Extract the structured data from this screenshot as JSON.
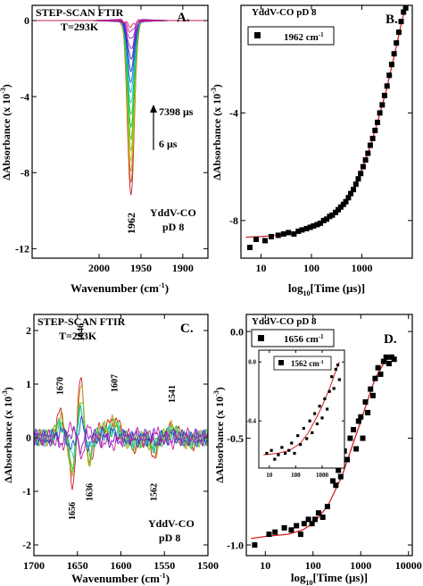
{
  "chart_data": [
    {
      "id": "A",
      "type": "line",
      "panel_letter": "A.",
      "title": [
        "STEP-SCAN FTIR",
        "T=293K"
      ],
      "xlabel": "Wavenumber (cm",
      "xlabel_sup": "-1",
      "xlabel_tail": ")",
      "ylabel": "ΔAbsorbance (x 10",
      "ylabel_sup": "-3",
      "ylabel_tail": ")",
      "xlim": [
        2080,
        1870
      ],
      "ylim": [
        -12.5,
        0.8
      ],
      "xticks": [
        2000,
        1950,
        1900
      ],
      "xtick_labels": [
        "2000",
        "1950",
        "1900"
      ],
      "yticks": [
        0,
        -4,
        -8,
        -12
      ],
      "ytick_labels": [
        "0",
        "-4",
        "-8",
        "-12"
      ],
      "peak_center": 1962,
      "peak_width": 4,
      "trace_min_depths": [
        -9.2,
        -8.6,
        -8.0,
        -7.4,
        -6.8,
        -6.2,
        -5.6,
        -5.0,
        -4.4,
        -3.8,
        -3.2,
        -2.6,
        -2.0,
        -1.5,
        -1.0,
        -0.6,
        -0.3
      ],
      "annotations": {
        "time_max": "7398 μs",
        "time_min": "6 μs",
        "peak_label": "1962",
        "sample": "YddV-CO",
        "condition": "pD 8"
      }
    },
    {
      "id": "B",
      "type": "scatter",
      "panel_letter": "B.",
      "title": "YddV-CO pD 8",
      "xlabel_prefix": "log",
      "xlabel_sub": "10",
      "xlabel_rest": "[Time (μs)]",
      "ylabel": "ΔAbsorbance (x 10",
      "ylabel_sup": "-3",
      "ylabel_tail": ")",
      "xscale": "log",
      "xlim": [
        4,
        10000
      ],
      "ylim": [
        -9.4,
        0
      ],
      "xticks": [
        10,
        100,
        1000
      ],
      "xtick_labels": [
        "10",
        "100",
        "1000"
      ],
      "yticks": [
        -4,
        -8
      ],
      "ytick_labels": [
        "-4",
        "-8"
      ],
      "legend": "1962 cm",
      "legend_sup": "-1",
      "legend_position": "top-left",
      "fit_color": "#d62020",
      "points": [
        [
          6,
          -9.0
        ],
        [
          8,
          -8.7
        ],
        [
          12,
          -8.75
        ],
        [
          16,
          -8.6
        ],
        [
          22,
          -8.55
        ],
        [
          28,
          -8.5
        ],
        [
          35,
          -8.45
        ],
        [
          45,
          -8.5
        ],
        [
          55,
          -8.4
        ],
        [
          65,
          -8.35
        ],
        [
          80,
          -8.3
        ],
        [
          95,
          -8.25
        ],
        [
          110,
          -8.2
        ],
        [
          130,
          -8.15
        ],
        [
          150,
          -8.1
        ],
        [
          175,
          -8.0
        ],
        [
          200,
          -7.95
        ],
        [
          230,
          -7.85
        ],
        [
          260,
          -7.8
        ],
        [
          300,
          -7.7
        ],
        [
          340,
          -7.6
        ],
        [
          380,
          -7.5
        ],
        [
          430,
          -7.4
        ],
        [
          480,
          -7.3
        ],
        [
          540,
          -7.15
        ],
        [
          600,
          -7.0
        ],
        [
          680,
          -6.85
        ],
        [
          760,
          -6.65
        ],
        [
          850,
          -6.45
        ],
        [
          950,
          -6.25
        ],
        [
          1060,
          -6.0
        ],
        [
          1180,
          -5.75
        ],
        [
          1320,
          -5.5
        ],
        [
          1470,
          -5.2
        ],
        [
          1640,
          -4.95
        ],
        [
          1830,
          -4.65
        ],
        [
          2040,
          -4.35
        ],
        [
          2270,
          -4.0
        ],
        [
          2530,
          -3.7
        ],
        [
          2820,
          -3.35
        ],
        [
          3150,
          -3.0
        ],
        [
          3500,
          -2.6
        ],
        [
          3900,
          -2.2
        ],
        [
          4350,
          -1.8
        ],
        [
          4850,
          -1.4
        ],
        [
          5400,
          -1.0
        ],
        [
          6000,
          -0.6
        ],
        [
          6700,
          -0.25
        ],
        [
          7398,
          -0.1
        ]
      ],
      "fit": [
        [
          5,
          -8.62
        ],
        [
          10,
          -8.6
        ],
        [
          20,
          -8.55
        ],
        [
          50,
          -8.45
        ],
        [
          100,
          -8.3
        ],
        [
          200,
          -8.0
        ],
        [
          400,
          -7.5
        ],
        [
          700,
          -6.8
        ],
        [
          1000,
          -6.1
        ],
        [
          1500,
          -5.2
        ],
        [
          2000,
          -4.4
        ],
        [
          3000,
          -3.2
        ],
        [
          4000,
          -2.2
        ],
        [
          5000,
          -1.4
        ],
        [
          6000,
          -0.7
        ],
        [
          7398,
          -0.05
        ]
      ]
    },
    {
      "id": "C",
      "type": "line",
      "panel_letter": "C.",
      "title": [
        "STEP-SCAN FTIR",
        "T=293K"
      ],
      "xlabel": "Wavenumber (cm",
      "xlabel_sup": "-1",
      "xlabel_tail": ")",
      "ylabel": "ΔAbsorbance (x 10",
      "ylabel_sup": "-3",
      "ylabel_tail": ")",
      "xlim": [
        1700,
        1500
      ],
      "ylim": [
        -2.2,
        2.3
      ],
      "xticks": [
        1700,
        1650,
        1600,
        1550,
        1500
      ],
      "xtick_labels": [
        "1700",
        "1650",
        "1600",
        "1550",
        "1500"
      ],
      "yticks": [
        2,
        1,
        0,
        -1,
        -2
      ],
      "ytick_labels": [
        "2",
        "1",
        "0",
        "-1",
        "-2"
      ],
      "bands": [
        [
          1670,
          0.45,
          4
        ],
        [
          1656,
          -0.9,
          3
        ],
        [
          1646,
          1.1,
          3
        ],
        [
          1636,
          -0.55,
          3
        ],
        [
          1620,
          0.2,
          5
        ],
        [
          1607,
          0.35,
          5
        ],
        [
          1585,
          -0.15,
          6
        ],
        [
          1562,
          -0.3,
          4
        ],
        [
          1541,
          0.2,
          5
        ],
        [
          1520,
          -0.1,
          6
        ]
      ],
      "trace_scales": [
        1.0,
        0.85,
        0.7,
        0.55,
        0.4,
        0.25,
        -0.15,
        -0.3
      ],
      "peak_labels": [
        {
          "text": "1670",
          "x": 1670,
          "y": 0.8
        },
        {
          "text": "1646",
          "x": 1646,
          "y": 1.8
        },
        {
          "text": "1607",
          "x": 1607,
          "y": 0.85
        },
        {
          "text": "1541",
          "x": 1541,
          "y": 0.65
        },
        {
          "text": "1656",
          "x": 1656,
          "y": -1.2
        },
        {
          "text": "1636",
          "x": 1636,
          "y": -0.85
        },
        {
          "text": "1562",
          "x": 1562,
          "y": -0.85
        }
      ],
      "annotations": {
        "sample": "YddV-CO",
        "condition": "pD 8"
      }
    },
    {
      "id": "D",
      "type": "scatter",
      "panel_letter": "D.",
      "title": "YddV-CO  pD 8",
      "xlabel_prefix": "log",
      "xlabel_sub": "10",
      "xlabel_rest": "[Time (μs)]",
      "ylabel": "ΔAbsorbance (x 10",
      "ylabel_sup": "-3",
      "ylabel_tail": ")",
      "xscale": "log",
      "xlim": [
        4,
        12000
      ],
      "ylim": [
        -1.05,
        0.08
      ],
      "xticks": [
        10,
        100,
        1000,
        10000
      ],
      "xtick_labels": [
        "10",
        "100",
        "1000",
        "10000"
      ],
      "yticks": [
        0.0,
        -0.5,
        -1.0
      ],
      "ytick_labels": [
        "0.0",
        "-0.5",
        "-1.0"
      ],
      "legend": "1656 cm",
      "legend_sup": "-1",
      "legend_position": "top-left",
      "fit_color": "#d62020",
      "points": [
        [
          6,
          -1.0
        ],
        [
          12,
          -0.95
        ],
        [
          16,
          -0.94
        ],
        [
          25,
          -0.92
        ],
        [
          35,
          -0.93
        ],
        [
          45,
          -0.91
        ],
        [
          55,
          -0.95
        ],
        [
          65,
          -0.9
        ],
        [
          80,
          -0.88
        ],
        [
          95,
          -0.9
        ],
        [
          110,
          -0.88
        ],
        [
          130,
          -0.85
        ],
        [
          160,
          -0.87
        ],
        [
          200,
          -0.82
        ],
        [
          260,
          -0.7
        ],
        [
          300,
          -0.72
        ],
        [
          340,
          -0.65
        ],
        [
          380,
          -0.68
        ],
        [
          450,
          -0.56
        ],
        [
          520,
          -0.6
        ],
        [
          600,
          -0.5
        ],
        [
          700,
          -0.46
        ],
        [
          800,
          -0.55
        ],
        [
          900,
          -0.42
        ],
        [
          1000,
          -0.4
        ],
        [
          1100,
          -0.5
        ],
        [
          1250,
          -0.33
        ],
        [
          1400,
          -0.38
        ],
        [
          1600,
          -0.27
        ],
        [
          1800,
          -0.3
        ],
        [
          2000,
          -0.22
        ],
        [
          2300,
          -0.17
        ],
        [
          2600,
          -0.2
        ],
        [
          3000,
          -0.14
        ],
        [
          3400,
          -0.12
        ],
        [
          3900,
          -0.15
        ],
        [
          4400,
          -0.12
        ],
        [
          5000,
          -0.13
        ]
      ],
      "fit": [
        [
          5,
          -0.97
        ],
        [
          10,
          -0.96
        ],
        [
          30,
          -0.95
        ],
        [
          60,
          -0.93
        ],
        [
          100,
          -0.9
        ],
        [
          200,
          -0.82
        ],
        [
          400,
          -0.68
        ],
        [
          700,
          -0.52
        ],
        [
          1000,
          -0.42
        ],
        [
          1500,
          -0.3
        ],
        [
          2000,
          -0.22
        ],
        [
          3000,
          -0.15
        ],
        [
          4000,
          -0.12
        ],
        [
          5000,
          -0.11
        ]
      ],
      "inset": {
        "xscale": "log",
        "xlim": [
          4,
          7000
        ],
        "ylim": [
          -0.72,
          0.08
        ],
        "xticks": [
          10,
          100,
          1000
        ],
        "xtick_labels": [
          "10",
          "100",
          "1000"
        ],
        "yticks": [
          0.0,
          -0.4
        ],
        "ytick_labels": [
          "0.0",
          "-0.4"
        ],
        "legend": "1562 cm",
        "legend_sup": "-1",
        "points": [
          [
            8,
            -0.62
          ],
          [
            12,
            -0.6
          ],
          [
            16,
            -0.66
          ],
          [
            22,
            -0.63
          ],
          [
            30,
            -0.58
          ],
          [
            40,
            -0.62
          ],
          [
            55,
            -0.6
          ],
          [
            70,
            -0.55
          ],
          [
            90,
            -0.62
          ],
          [
            120,
            -0.5
          ],
          [
            150,
            -0.56
          ],
          [
            200,
            -0.45
          ],
          [
            260,
            -0.52
          ],
          [
            340,
            -0.4
          ],
          [
            420,
            -0.48
          ],
          [
            520,
            -0.35
          ],
          [
            650,
            -0.42
          ],
          [
            800,
            -0.3
          ],
          [
            1000,
            -0.38
          ],
          [
            1250,
            -0.25
          ],
          [
            1550,
            -0.32
          ],
          [
            1900,
            -0.2
          ],
          [
            2300,
            -0.1
          ],
          [
            2800,
            -0.18
          ],
          [
            3300,
            -0.05
          ],
          [
            3900,
            -0.02
          ],
          [
            4500,
            -0.12
          ]
        ],
        "fit": [
          [
            6,
            -0.63
          ],
          [
            20,
            -0.62
          ],
          [
            60,
            -0.6
          ],
          [
            150,
            -0.55
          ],
          [
            300,
            -0.48
          ],
          [
            600,
            -0.38
          ],
          [
            1000,
            -0.3
          ],
          [
            2000,
            -0.17
          ],
          [
            3000,
            -0.08
          ],
          [
            4500,
            0.0
          ]
        ]
      }
    }
  ]
}
